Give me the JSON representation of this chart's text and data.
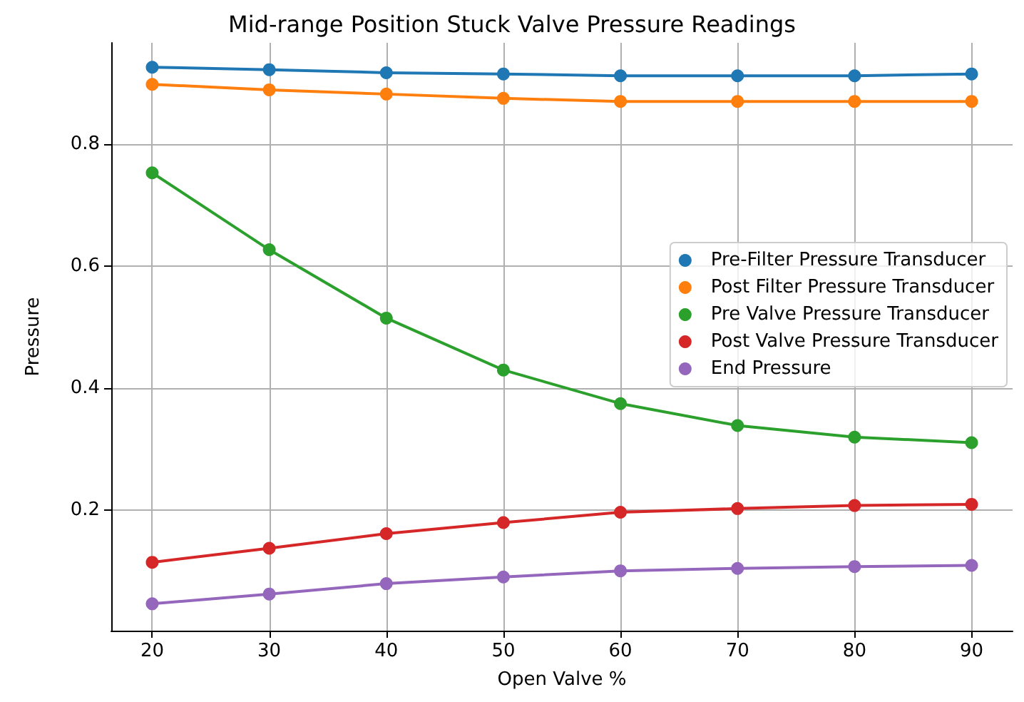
{
  "chart_data": {
    "type": "line",
    "title": "Mid-range Position Stuck Valve Pressure Readings",
    "xlabel": "Open Valve %",
    "ylabel": "Pressure",
    "x": [
      20,
      30,
      40,
      50,
      60,
      70,
      80,
      90
    ],
    "series": [
      {
        "name": "Pre-Filter Pressure Transducer",
        "color": "#1f77b4",
        "values": [
          0.926,
          0.922,
          0.917,
          0.915,
          0.912,
          0.912,
          0.912,
          0.915
        ]
      },
      {
        "name": "Post Filter Pressure Transducer",
        "color": "#ff7f0e",
        "values": [
          0.898,
          0.889,
          0.882,
          0.875,
          0.87,
          0.87,
          0.87,
          0.87
        ]
      },
      {
        "name": "Pre Valve Pressure Transducer",
        "color": "#2ca02c",
        "values": [
          0.753,
          0.627,
          0.515,
          0.43,
          0.375,
          0.339,
          0.32,
          0.311
        ]
      },
      {
        "name": "Post Valve Pressure Transducer",
        "color": "#d62728",
        "values": [
          0.115,
          0.138,
          0.162,
          0.18,
          0.197,
          0.203,
          0.208,
          0.21
        ]
      },
      {
        "name": "End Pressure",
        "color": "#9467bd",
        "values": [
          0.047,
          0.063,
          0.08,
          0.091,
          0.101,
          0.105,
          0.108,
          0.11
        ]
      }
    ],
    "xlim": [
      16.5,
      93.5
    ],
    "xticks": [
      20,
      30,
      40,
      50,
      60,
      70,
      80,
      90
    ],
    "ylim": [
      0.003,
      0.966
    ],
    "yticks": [
      0.2,
      0.4,
      0.6,
      0.8
    ],
    "grid": true,
    "legend": "right",
    "marker": "circle",
    "line_style": "solid"
  }
}
